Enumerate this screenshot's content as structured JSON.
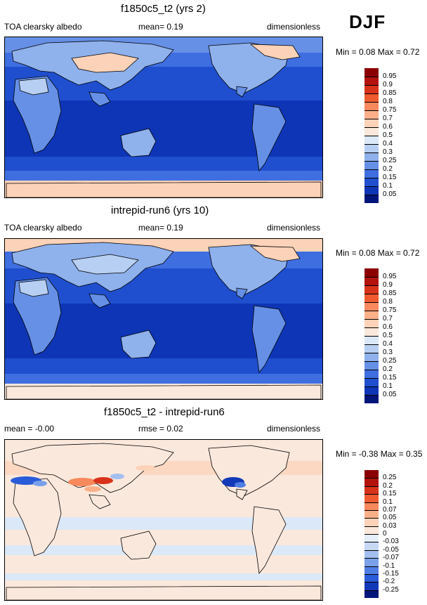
{
  "season": "DJF",
  "panels": [
    {
      "title": "f1850c5_t2 (yrs 2)",
      "left_label": "TOA clearsky albedo",
      "center_label": "mean=  0.19",
      "right_label": "dimensionless",
      "minmax": "Min =   0.08 Max =   0.72",
      "colorbar": {
        "labels": [
          "0.95",
          "0.9",
          "0.85",
          "0.8",
          "0.75",
          "0.7",
          "0.6",
          "0.5",
          "0.4",
          "0.3",
          "0.25",
          "0.2",
          "0.15",
          "0.1",
          "0.05"
        ],
        "colors": [
          "#8b0000",
          "#b3120d",
          "#d8331a",
          "#ef5a2e",
          "#f7895c",
          "#fbb08a",
          "#fcd2b8",
          "#fbe8dc",
          "#dbe8f7",
          "#b7cff2",
          "#8fb1ec",
          "#6690e6",
          "#3f6ee0",
          "#1f4fcf",
          "#0e35b5",
          "#00147a"
        ]
      }
    },
    {
      "title": "intrepid-run6 (yrs 10)",
      "left_label": "TOA clearsky albedo",
      "center_label": "mean=  0.19",
      "right_label": "dimensionless",
      "minmax": "Min =   0.08 Max =   0.72",
      "colorbar": {
        "labels": [
          "0.95",
          "0.9",
          "0.85",
          "0.8",
          "0.75",
          "0.7",
          "0.6",
          "0.5",
          "0.4",
          "0.3",
          "0.25",
          "0.2",
          "0.15",
          "0.1",
          "0.05"
        ],
        "colors": [
          "#8b0000",
          "#b3120d",
          "#d8331a",
          "#ef5a2e",
          "#f7895c",
          "#fbb08a",
          "#fcd2b8",
          "#fbe8dc",
          "#dbe8f7",
          "#b7cff2",
          "#8fb1ec",
          "#6690e6",
          "#3f6ee0",
          "#1f4fcf",
          "#0e35b5",
          "#00147a"
        ]
      }
    },
    {
      "title": "f1850c5_t2 - intrepid-run6",
      "left_label": "mean =  -0.00",
      "center_label": "rmse =  0.02",
      "right_label": "dimensionless",
      "minmax": "Min =  -0.38 Max =   0.35",
      "colorbar": {
        "labels": [
          "0.25",
          "0.2",
          "0.15",
          "0.1",
          "0.07",
          "0.05",
          "0.03",
          "0",
          "-0.03",
          "-0.05",
          "-0.07",
          "-0.1",
          "-0.15",
          "-0.2",
          "-0.25"
        ],
        "colors": [
          "#8b0000",
          "#b3120d",
          "#d8331a",
          "#ef5a2e",
          "#f7895c",
          "#fbb08a",
          "#fcd2b8",
          "#fbe8dc",
          "#e6eefa",
          "#c6d8f4",
          "#a3bff0",
          "#7aa0ea",
          "#4f7ee4",
          "#2a5bd8",
          "#1239b8",
          "#00147a"
        ]
      }
    }
  ],
  "palette": {
    "ocean_deep": "#0e35b5",
    "ocean_mid": "#1f4fcf",
    "ocean_light": "#3f6ee0",
    "land_low": "#6690e6",
    "land_mid": "#8fb1ec",
    "land_high": "#b7cff2",
    "snow": "#fcd2b8",
    "diff_bg": "#fbe8dc",
    "diff_pos": "#fcd2b8",
    "diff_neg": "#dbe8f7",
    "coast": "#000000"
  }
}
